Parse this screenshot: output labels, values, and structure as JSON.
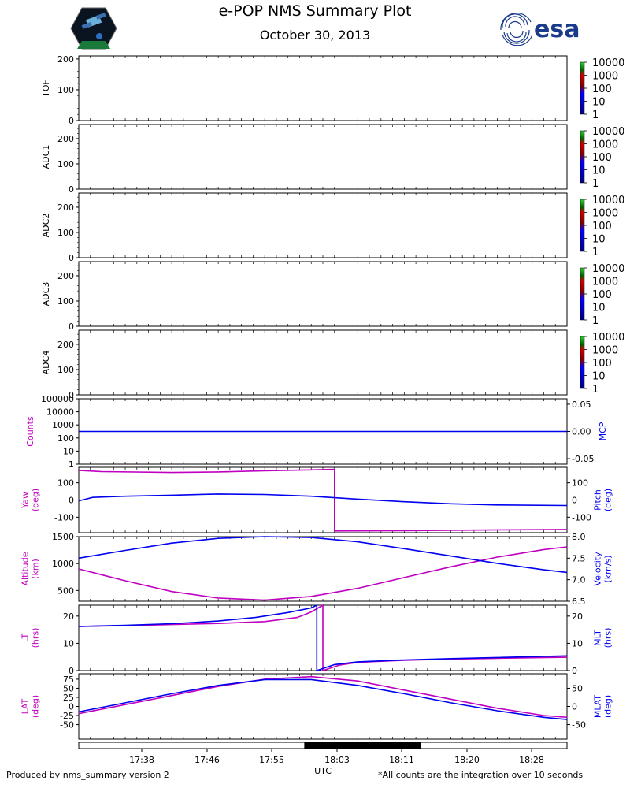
{
  "header": {
    "title": "e-POP NMS Summary Plot",
    "date": "October 30, 2013",
    "right_logo_text": "esa"
  },
  "footer": {
    "left": "Produced by nms_summary version 2",
    "right": "*All counts are the integration over 10 seconds"
  },
  "colors": {
    "magenta": "#c000c0",
    "blue": "#0000ee",
    "black": "#000000"
  },
  "icons": {
    "left_logo": "satellite-mission-patch-icon",
    "right_logo": "esa-logo-icon"
  },
  "chart_data": [
    {
      "type": "heatmap",
      "ylabel": "TOF",
      "ylim": [
        0,
        210
      ],
      "yticks": [
        0,
        100,
        200
      ],
      "colorbar": {
        "scale": "log",
        "ticks": [
          "1",
          "10",
          "100",
          "1000",
          "10000"
        ]
      },
      "values": []
    },
    {
      "type": "heatmap",
      "ylabel": "ADC1",
      "ylim": [
        0,
        256
      ],
      "yticks": [
        0,
        100,
        200
      ],
      "colorbar": {
        "scale": "log",
        "ticks": [
          "1",
          "10",
          "100",
          "1000",
          "10000"
        ]
      },
      "values": []
    },
    {
      "type": "heatmap",
      "ylabel": "ADC2",
      "ylim": [
        0,
        256
      ],
      "yticks": [
        0,
        100,
        200
      ],
      "colorbar": {
        "scale": "log",
        "ticks": [
          "1",
          "10",
          "100",
          "1000",
          "10000"
        ]
      },
      "values": []
    },
    {
      "type": "heatmap",
      "ylabel": "ADC3",
      "ylim": [
        0,
        256
      ],
      "yticks": [
        0,
        100,
        200
      ],
      "colorbar": {
        "scale": "log",
        "ticks": [
          "1",
          "10",
          "100",
          "1000",
          "10000"
        ]
      },
      "values": []
    },
    {
      "type": "heatmap",
      "ylabel": "ADC4",
      "ylim": [
        0,
        256
      ],
      "yticks": [
        0,
        100,
        200
      ],
      "colorbar": {
        "scale": "log",
        "ticks": [
          "1",
          "10",
          "100",
          "1000",
          "10000"
        ]
      },
      "values": []
    },
    {
      "type": "line",
      "left_label": "Counts",
      "right_label": "MCP",
      "left_scale": "log",
      "left_ticks": [
        "1",
        "10",
        "100",
        "1000",
        "10000",
        "100000"
      ],
      "right_ticks": [
        "-0.05",
        "0.00",
        "0.05"
      ],
      "right_ylim": [
        -0.06,
        0.06
      ],
      "series": [
        {
          "axis": "right",
          "color": "blue",
          "x": [
            17.5,
            18.55
          ],
          "y": [
            0.0,
            0.0
          ]
        }
      ]
    },
    {
      "type": "line",
      "left_label": "Yaw\n(deg)",
      "right_label": "Pitch\n(deg)",
      "left_ylim": [
        -190,
        190
      ],
      "left_ticks": [
        -100,
        0,
        100
      ],
      "right_ticks": [
        "-100",
        "0",
        "100"
      ],
      "series": [
        {
          "axis": "left",
          "color": "magenta",
          "x": [
            17.5,
            17.55,
            17.7,
            17.8,
            17.9,
            18.0,
            18.05,
            18.05,
            18.2,
            18.35,
            18.55
          ],
          "y": [
            172,
            165,
            160,
            163,
            170,
            175,
            178,
            -180,
            -178,
            -175,
            -171
          ]
        },
        {
          "axis": "left",
          "color": "blue",
          "x": [
            17.5,
            17.53,
            17.6,
            17.7,
            17.8,
            17.9,
            18.0,
            18.1,
            18.2,
            18.3,
            18.4,
            18.55
          ],
          "y": [
            -5,
            15,
            22,
            28,
            35,
            32,
            22,
            5,
            -10,
            -22,
            -29,
            -32
          ]
        }
      ]
    },
    {
      "type": "line",
      "left_label": "Altitude\n(km)",
      "right_label": "Velocity\n(km/s)",
      "left_ylim": [
        300,
        1500
      ],
      "left_ticks": [
        500,
        1000,
        1500
      ],
      "right_ylim": [
        6.5,
        8.0
      ],
      "right_ticks": [
        "6.5",
        "7.0",
        "7.5",
        "8.0"
      ],
      "series": [
        {
          "axis": "left",
          "color": "magenta",
          "x": [
            17.5,
            17.6,
            17.7,
            17.8,
            17.9,
            18.0,
            18.1,
            18.2,
            18.3,
            18.4,
            18.5,
            18.55
          ],
          "y": [
            900,
            680,
            480,
            360,
            320,
            390,
            540,
            740,
            940,
            1120,
            1260,
            1310
          ]
        },
        {
          "axis": "right",
          "color": "blue",
          "x": [
            17.5,
            17.6,
            17.7,
            17.8,
            17.9,
            18.0,
            18.1,
            18.2,
            18.3,
            18.4,
            18.5,
            18.55
          ],
          "y": [
            7.5,
            7.68,
            7.85,
            7.96,
            8.0,
            7.98,
            7.88,
            7.72,
            7.55,
            7.38,
            7.23,
            7.17
          ]
        }
      ]
    },
    {
      "type": "line",
      "left_label": "LT\n(hrs)",
      "right_label": "MLT\n(hrs)",
      "left_ylim": [
        0,
        24
      ],
      "left_ticks": [
        0,
        10,
        20
      ],
      "right_ticks": [
        "0",
        "10",
        "20"
      ],
      "series": [
        {
          "axis": "left",
          "color": "magenta",
          "x": [
            17.5,
            17.6,
            17.7,
            17.8,
            17.9,
            17.97,
            18.0,
            18.025,
            18.025,
            18.06,
            18.1,
            18.2,
            18.3,
            18.4,
            18.55
          ],
          "y": [
            16.2,
            16.5,
            16.9,
            17.3,
            18.0,
            19.5,
            21.5,
            24,
            0,
            2.0,
            3.0,
            3.8,
            4.2,
            4.5,
            4.9
          ]
        },
        {
          "axis": "left",
          "color": "blue",
          "x": [
            17.5,
            17.6,
            17.7,
            17.8,
            17.88,
            17.95,
            18.0,
            18.012,
            18.012,
            18.05,
            18.1,
            18.2,
            18.3,
            18.4,
            18.55
          ],
          "y": [
            16.2,
            16.6,
            17.2,
            18.2,
            19.5,
            21.3,
            23.0,
            24,
            0,
            2.2,
            3.2,
            3.9,
            4.4,
            4.8,
            5.4
          ]
        }
      ]
    },
    {
      "type": "line",
      "left_label": "LAT\n(deg)",
      "right_label": "MLAT\n(deg)",
      "left_ylim": [
        -90,
        90
      ],
      "left_ticks": [
        -50,
        -25,
        0,
        25,
        50,
        75
      ],
      "right_ticks": [
        "-50",
        "0",
        "50"
      ],
      "series": [
        {
          "axis": "left",
          "color": "magenta",
          "x": [
            17.5,
            17.6,
            17.7,
            17.8,
            17.9,
            18.0,
            18.1,
            18.2,
            18.3,
            18.4,
            18.5,
            18.55
          ],
          "y": [
            -20,
            5,
            30,
            55,
            75,
            82,
            70,
            45,
            20,
            -5,
            -25,
            -30
          ]
        },
        {
          "axis": "left",
          "color": "blue",
          "x": [
            17.5,
            17.6,
            17.7,
            17.8,
            17.9,
            18.0,
            18.1,
            18.2,
            18.3,
            18.4,
            18.5,
            18.55
          ],
          "y": [
            -15,
            10,
            35,
            58,
            74,
            74,
            58,
            35,
            10,
            -12,
            -30,
            -36
          ]
        }
      ]
    },
    {
      "type": "bar",
      "name": "eclipse",
      "x": [
        17.5,
        18.55
      ],
      "dark_ranges": [
        [
          17.985,
          18.235
        ]
      ],
      "xlabel": "UTC",
      "xticks": [
        "17:38",
        "17:46",
        "17:55",
        "18:03",
        "18:11",
        "18:20",
        "18:28"
      ]
    }
  ]
}
